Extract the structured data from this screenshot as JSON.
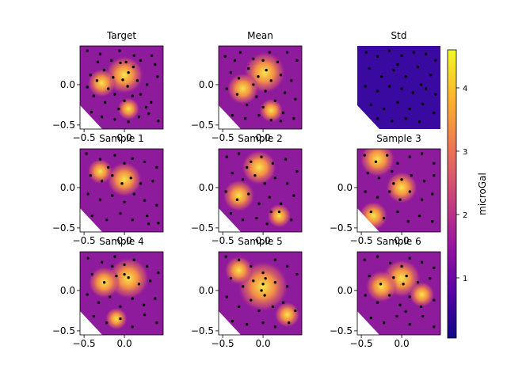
{
  "chart_data": [
    {
      "type": "heatmap",
      "title": "Target",
      "xlim": [
        -0.55,
        0.48
      ],
      "ylim": [
        -0.55,
        0.48
      ],
      "xticks": [
        -0.5,
        0.0
      ],
      "yticks": [
        -0.5,
        0.0
      ],
      "hotspots": [
        [
          0.0,
          0.12,
          0.24
        ],
        [
          -0.28,
          0.02,
          0.18
        ],
        [
          0.05,
          -0.3,
          0.14
        ]
      ],
      "stations": [
        [
          -0.46,
          0.42
        ],
        [
          -0.3,
          0.38
        ],
        [
          -0.16,
          0.3
        ],
        [
          -0.05,
          0.27
        ],
        [
          0.02,
          0.28
        ],
        [
          0.12,
          0.36
        ],
        [
          0.2,
          0.3
        ],
        [
          0.34,
          0.36
        ],
        [
          0.41,
          0.1
        ],
        [
          -0.42,
          0.12
        ],
        [
          -0.34,
          0.05
        ],
        [
          -0.25,
          0.18
        ],
        [
          -0.14,
          0.09
        ],
        [
          -0.02,
          0.06
        ],
        [
          0.05,
          0.15
        ],
        [
          0.04,
          -0.02
        ],
        [
          0.16,
          0.05
        ],
        [
          0.28,
          0.0
        ],
        [
          -0.46,
          -0.03
        ],
        [
          -0.38,
          -0.14
        ],
        [
          -0.24,
          -0.22
        ],
        [
          -0.12,
          -0.12
        ],
        [
          0.0,
          -0.2
        ],
        [
          0.1,
          -0.14
        ],
        [
          0.2,
          -0.12
        ],
        [
          0.33,
          -0.22
        ],
        [
          -0.41,
          -0.34
        ],
        [
          -0.28,
          -0.4
        ],
        [
          -0.12,
          -0.43
        ],
        [
          0.05,
          -0.46
        ],
        [
          0.18,
          -0.4
        ],
        [
          0.3,
          -0.36
        ],
        [
          0.42,
          -0.45
        ],
        [
          -0.07,
          -0.3
        ],
        [
          0.27,
          -0.28
        ],
        [
          -0.33,
          0.28
        ],
        [
          0.38,
          0.25
        ],
        [
          -0.2,
          -0.05
        ],
        [
          0.11,
          0.22
        ],
        [
          -0.06,
          0.42
        ]
      ]
    },
    {
      "type": "heatmap",
      "title": "Mean",
      "xlim": [
        -0.55,
        0.48
      ],
      "ylim": [
        -0.55,
        0.48
      ],
      "xticks": [
        -0.5,
        0.0
      ],
      "yticks": [
        -0.5,
        0.0
      ],
      "hotspots": [
        [
          0.02,
          0.15,
          0.26
        ],
        [
          -0.25,
          -0.05,
          0.2
        ],
        [
          0.1,
          -0.32,
          0.15
        ]
      ],
      "stations": [
        [
          -0.47,
          0.35
        ],
        [
          -0.28,
          0.4
        ],
        [
          -0.12,
          0.32
        ],
        [
          0.0,
          0.3
        ],
        [
          0.08,
          0.4
        ],
        [
          0.18,
          0.28
        ],
        [
          0.3,
          0.4
        ],
        [
          0.42,
          0.3
        ],
        [
          -0.4,
          0.15
        ],
        [
          -0.3,
          0.08
        ],
        [
          -0.18,
          0.2
        ],
        [
          -0.06,
          0.1
        ],
        [
          0.04,
          0.18
        ],
        [
          0.1,
          0.05
        ],
        [
          0.22,
          0.12
        ],
        [
          0.35,
          0.05
        ],
        [
          -0.45,
          -0.05
        ],
        [
          -0.32,
          -0.12
        ],
        [
          -0.2,
          -0.25
        ],
        [
          -0.08,
          -0.15
        ],
        [
          0.03,
          -0.08
        ],
        [
          0.15,
          -0.2
        ],
        [
          0.27,
          -0.1
        ],
        [
          0.4,
          -0.18
        ],
        [
          -0.38,
          -0.38
        ],
        [
          -0.22,
          -0.42
        ],
        [
          -0.05,
          -0.38
        ],
        [
          0.1,
          -0.44
        ],
        [
          0.25,
          -0.35
        ],
        [
          0.38,
          -0.42
        ],
        [
          -0.12,
          0.0
        ],
        [
          0.22,
          -0.45
        ],
        [
          -0.35,
          0.3
        ],
        [
          0.0,
          -0.28
        ]
      ]
    },
    {
      "type": "heatmap",
      "title": "Std",
      "xlim": [
        -0.55,
        0.48
      ],
      "ylim": [
        -0.55,
        0.48
      ],
      "xticks": [],
      "yticks": [],
      "hotspots": [],
      "stations": [
        [
          -0.44,
          0.4
        ],
        [
          -0.3,
          0.35
        ],
        [
          -0.15,
          0.42
        ],
        [
          0.0,
          0.36
        ],
        [
          0.15,
          0.4
        ],
        [
          0.3,
          0.38
        ],
        [
          0.42,
          0.3
        ],
        [
          -0.4,
          0.2
        ],
        [
          -0.25,
          0.1
        ],
        [
          -0.1,
          0.18
        ],
        [
          0.05,
          0.1
        ],
        [
          0.2,
          0.22
        ],
        [
          0.36,
          0.12
        ],
        [
          -0.45,
          -0.02
        ],
        [
          -0.3,
          -0.08
        ],
        [
          -0.15,
          -0.02
        ],
        [
          0.0,
          -0.05
        ],
        [
          0.14,
          -0.1
        ],
        [
          0.3,
          -0.05
        ],
        [
          0.42,
          -0.12
        ],
        [
          -0.38,
          -0.25
        ],
        [
          -0.22,
          -0.3
        ],
        [
          -0.05,
          -0.22
        ],
        [
          0.1,
          -0.3
        ],
        [
          0.26,
          -0.24
        ],
        [
          0.4,
          -0.35
        ],
        [
          -0.3,
          -0.42
        ],
        [
          -0.12,
          -0.45
        ],
        [
          0.05,
          -0.42
        ],
        [
          0.22,
          -0.46
        ],
        [
          -0.05,
          0.25
        ],
        [
          0.24,
          0.0
        ]
      ]
    },
    {
      "type": "heatmap",
      "title": "Sample 1",
      "xlim": [
        -0.55,
        0.48
      ],
      "ylim": [
        -0.55,
        0.48
      ],
      "xticks": [
        -0.5,
        0.0
      ],
      "yticks": [
        -0.5,
        0.0
      ],
      "hotspots": [
        [
          0.0,
          0.1,
          0.22
        ],
        [
          -0.3,
          0.2,
          0.16
        ]
      ],
      "stations": [
        [
          -0.47,
          0.42
        ],
        [
          -0.3,
          0.35
        ],
        [
          -0.12,
          0.4
        ],
        [
          0.0,
          0.3
        ],
        [
          0.1,
          0.36
        ],
        [
          0.25,
          0.32
        ],
        [
          0.4,
          0.25
        ],
        [
          -0.42,
          0.15
        ],
        [
          -0.28,
          0.08
        ],
        [
          -0.15,
          0.15
        ],
        [
          -0.03,
          0.05
        ],
        [
          0.08,
          0.12
        ],
        [
          0.2,
          0.05
        ],
        [
          0.35,
          0.08
        ],
        [
          -0.45,
          -0.08
        ],
        [
          -0.3,
          -0.15
        ],
        [
          -0.15,
          -0.1
        ],
        [
          0.0,
          -0.18
        ],
        [
          0.12,
          -0.08
        ],
        [
          0.25,
          -0.16
        ],
        [
          0.4,
          -0.22
        ],
        [
          -0.4,
          -0.35
        ],
        [
          -0.22,
          -0.4
        ],
        [
          -0.05,
          -0.32
        ],
        [
          0.1,
          -0.4
        ],
        [
          0.28,
          -0.35
        ],
        [
          0.42,
          -0.44
        ],
        [
          -0.2,
          0.25
        ],
        [
          0.3,
          -0.45
        ]
      ]
    },
    {
      "type": "heatmap",
      "title": "Sample 2",
      "xlim": [
        -0.55,
        0.48
      ],
      "ylim": [
        -0.55,
        0.48
      ],
      "xticks": [
        -0.5,
        0.0
      ],
      "yticks": [
        -0.5,
        0.0
      ],
      "hotspots": [
        [
          -0.05,
          0.25,
          0.22
        ],
        [
          -0.3,
          -0.1,
          0.2
        ],
        [
          0.2,
          -0.35,
          0.15
        ]
      ],
      "stations": [
        [
          -0.45,
          0.38
        ],
        [
          -0.3,
          0.42
        ],
        [
          -0.15,
          0.32
        ],
        [
          -0.02,
          0.38
        ],
        [
          0.12,
          0.3
        ],
        [
          0.28,
          0.35
        ],
        [
          0.42,
          0.2
        ],
        [
          -0.38,
          0.18
        ],
        [
          -0.25,
          0.1
        ],
        [
          -0.1,
          0.15
        ],
        [
          0.02,
          0.05
        ],
        [
          0.15,
          0.12
        ],
        [
          0.3,
          0.05
        ],
        [
          -0.46,
          -0.05
        ],
        [
          -0.32,
          -0.15
        ],
        [
          -0.18,
          -0.08
        ],
        [
          -0.05,
          -0.2
        ],
        [
          0.08,
          -0.12
        ],
        [
          0.22,
          -0.2
        ],
        [
          0.38,
          -0.1
        ],
        [
          -0.4,
          -0.32
        ],
        [
          -0.25,
          -0.4
        ],
        [
          -0.08,
          -0.38
        ],
        [
          0.05,
          -0.45
        ],
        [
          0.2,
          -0.3
        ],
        [
          0.35,
          -0.4
        ],
        [
          -0.2,
          0.25
        ],
        [
          0.1,
          -0.3
        ]
      ]
    },
    {
      "type": "heatmap",
      "title": "Sample 3",
      "xlim": [
        -0.55,
        0.48
      ],
      "ylim": [
        -0.55,
        0.48
      ],
      "xticks": [
        -0.5,
        0.0
      ],
      "yticks": [
        -0.5,
        0.0
      ],
      "hotspots": [
        [
          -0.3,
          0.35,
          0.22
        ],
        [
          0.0,
          0.0,
          0.2
        ],
        [
          -0.35,
          -0.35,
          0.18
        ]
      ],
      "stations": [
        [
          -0.46,
          0.4
        ],
        [
          -0.32,
          0.32
        ],
        [
          -0.18,
          0.4
        ],
        [
          -0.05,
          0.3
        ],
        [
          0.1,
          0.38
        ],
        [
          0.25,
          0.42
        ],
        [
          0.4,
          0.3
        ],
        [
          -0.42,
          0.18
        ],
        [
          -0.28,
          0.12
        ],
        [
          -0.12,
          0.2
        ],
        [
          0.0,
          0.1
        ],
        [
          0.12,
          0.15
        ],
        [
          0.28,
          0.08
        ],
        [
          0.4,
          0.15
        ],
        [
          -0.45,
          -0.05
        ],
        [
          -0.3,
          -0.12
        ],
        [
          -0.15,
          -0.05
        ],
        [
          -0.02,
          -0.15
        ],
        [
          0.1,
          -0.05
        ],
        [
          0.25,
          -0.15
        ],
        [
          0.38,
          -0.08
        ],
        [
          -0.38,
          -0.3
        ],
        [
          -0.22,
          -0.38
        ],
        [
          -0.05,
          -0.3
        ],
        [
          0.08,
          -0.42
        ],
        [
          0.22,
          -0.35
        ],
        [
          0.38,
          -0.42
        ],
        [
          -0.1,
          0.05
        ]
      ]
    },
    {
      "type": "heatmap",
      "title": "Sample 4",
      "xlim": [
        -0.55,
        0.48
      ],
      "ylim": [
        -0.55,
        0.48
      ],
      "xticks": [
        -0.5,
        0.0
      ],
      "yticks": [
        -0.5,
        0.0
      ],
      "hotspots": [
        [
          0.05,
          0.15,
          0.26
        ],
        [
          -0.25,
          0.1,
          0.2
        ],
        [
          -0.1,
          -0.35,
          0.14
        ]
      ],
      "stations": [
        [
          -0.45,
          0.4
        ],
        [
          -0.28,
          0.35
        ],
        [
          -0.12,
          0.42
        ],
        [
          0.0,
          0.32
        ],
        [
          0.12,
          0.38
        ],
        [
          0.28,
          0.3
        ],
        [
          0.42,
          0.22
        ],
        [
          -0.4,
          0.2
        ],
        [
          -0.25,
          0.1
        ],
        [
          -0.1,
          0.18
        ],
        [
          0.0,
          0.2
        ],
        [
          0.05,
          0.16
        ],
        [
          0.18,
          0.08
        ],
        [
          0.32,
          0.12
        ],
        [
          -0.46,
          -0.05
        ],
        [
          -0.32,
          -0.15
        ],
        [
          -0.18,
          -0.08
        ],
        [
          -0.05,
          -0.2
        ],
        [
          0.1,
          -0.1
        ],
        [
          0.24,
          -0.18
        ],
        [
          0.38,
          -0.1
        ],
        [
          -0.38,
          -0.32
        ],
        [
          -0.22,
          -0.4
        ],
        [
          -0.05,
          -0.35
        ],
        [
          0.1,
          -0.45
        ],
        [
          0.25,
          -0.3
        ],
        [
          0.4,
          -0.4
        ],
        [
          -0.15,
          0.3
        ]
      ]
    },
    {
      "type": "heatmap",
      "title": "Sample 5",
      "xlim": [
        -0.55,
        0.48
      ],
      "ylim": [
        -0.55,
        0.48
      ],
      "xticks": [
        -0.5,
        0.0
      ],
      "yticks": [
        -0.5,
        0.0
      ],
      "hotspots": [
        [
          0.0,
          0.05,
          0.32
        ],
        [
          -0.3,
          0.25,
          0.18
        ],
        [
          0.3,
          -0.3,
          0.16
        ]
      ],
      "stations": [
        [
          -0.46,
          0.42
        ],
        [
          -0.3,
          0.38
        ],
        [
          -0.15,
          0.3
        ],
        [
          0.0,
          0.22
        ],
        [
          0.03,
          0.15
        ],
        [
          0.0,
          0.08
        ],
        [
          -0.02,
          0.0
        ],
        [
          0.02,
          -0.06
        ],
        [
          0.15,
          0.38
        ],
        [
          0.3,
          0.3
        ],
        [
          0.42,
          0.2
        ],
        [
          -0.4,
          0.15
        ],
        [
          -0.25,
          0.05
        ],
        [
          -0.12,
          0.12
        ],
        [
          0.15,
          0.1
        ],
        [
          0.3,
          0.05
        ],
        [
          -0.45,
          -0.08
        ],
        [
          -0.3,
          -0.2
        ],
        [
          -0.15,
          -0.12
        ],
        [
          -0.05,
          -0.25
        ],
        [
          0.12,
          -0.2
        ],
        [
          0.25,
          -0.15
        ],
        [
          0.4,
          -0.25
        ],
        [
          -0.38,
          -0.38
        ],
        [
          -0.2,
          -0.42
        ],
        [
          0.0,
          -0.4
        ],
        [
          0.15,
          -0.45
        ],
        [
          0.32,
          -0.4
        ]
      ]
    },
    {
      "type": "heatmap",
      "title": "Sample 6",
      "xlim": [
        -0.55,
        0.48
      ],
      "ylim": [
        -0.55,
        0.48
      ],
      "xticks": [
        -0.5,
        0.0
      ],
      "yticks": [
        -0.5,
        0.0
      ],
      "hotspots": [
        [
          0.0,
          0.15,
          0.24
        ],
        [
          -0.25,
          0.05,
          0.2
        ],
        [
          0.25,
          -0.05,
          0.16
        ]
      ],
      "stations": [
        [
          -0.46,
          0.38
        ],
        [
          -0.3,
          0.42
        ],
        [
          -0.14,
          0.34
        ],
        [
          0.0,
          0.3
        ],
        [
          0.1,
          0.4
        ],
        [
          0.25,
          0.35
        ],
        [
          0.4,
          0.28
        ],
        [
          -0.4,
          0.18
        ],
        [
          -0.26,
          0.08
        ],
        [
          -0.1,
          0.16
        ],
        [
          0.02,
          0.08
        ],
        [
          0.06,
          0.18
        ],
        [
          0.2,
          0.1
        ],
        [
          0.35,
          0.15
        ],
        [
          -0.45,
          -0.06
        ],
        [
          -0.3,
          -0.15
        ],
        [
          -0.15,
          -0.06
        ],
        [
          -0.02,
          -0.18
        ],
        [
          0.1,
          -0.08
        ],
        [
          0.24,
          -0.2
        ],
        [
          0.4,
          -0.12
        ],
        [
          -0.38,
          -0.34
        ],
        [
          -0.22,
          -0.4
        ],
        [
          -0.06,
          -0.32
        ],
        [
          0.1,
          -0.42
        ],
        [
          0.26,
          -0.32
        ],
        [
          0.4,
          -0.45
        ],
        [
          0.05,
          -0.26
        ]
      ]
    }
  ],
  "colorbar": {
    "label": "microGal",
    "range": [
      0.05,
      4.6
    ],
    "ticks": [
      1,
      2,
      3,
      4
    ],
    "tick_labels": [
      "1",
      "2",
      "3",
      "4"
    ],
    "colormap": [
      "#0d0887",
      "#5c01a6",
      "#9c179e",
      "#cc4778",
      "#ed7953",
      "#fdb42f",
      "#f0f921"
    ]
  }
}
